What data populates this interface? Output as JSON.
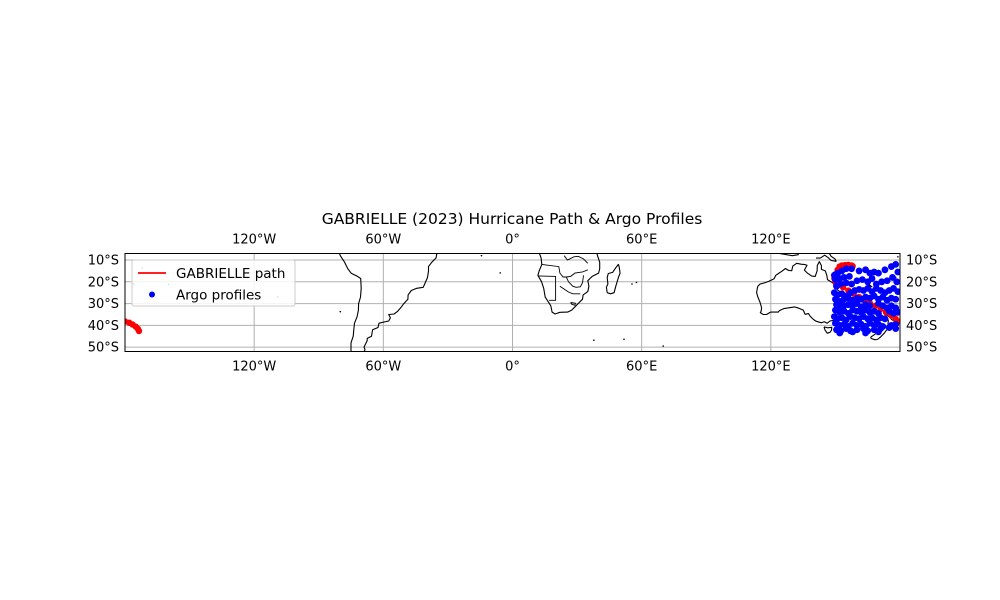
{
  "chart_data": {
    "type": "scatter",
    "title": "GABRIELLE (2023) Hurricane Path & Argo Profiles",
    "projection": "PlateCarree",
    "xlim": [
      -180,
      180
    ],
    "ylim": [
      -52,
      -7
    ],
    "grid": true,
    "legend_position": "upper-left",
    "lon_ticks": [
      {
        "value": -120,
        "label": "120°W"
      },
      {
        "value": -60,
        "label": "60°W"
      },
      {
        "value": 0,
        "label": "0°"
      },
      {
        "value": 60,
        "label": "60°E"
      },
      {
        "value": 120,
        "label": "120°E"
      }
    ],
    "lat_ticks": [
      {
        "value": -10,
        "label": "10°S"
      },
      {
        "value": -20,
        "label": "20°S"
      },
      {
        "value": -30,
        "label": "30°S"
      },
      {
        "value": -40,
        "label": "40°S"
      },
      {
        "value": -50,
        "label": "50°S"
      }
    ],
    "series": [
      {
        "name": "GABRIELLE path",
        "kind": "line",
        "color": "#ff0000",
        "segments": [
          [
            [
              152,
              -13
            ],
            [
              153,
              -12.5
            ],
            [
              154.5,
              -12.3
            ],
            [
              156,
              -12.2
            ],
            [
              157.5,
              -12.5
            ],
            [
              158,
              -12.8
            ]
          ],
          [
            [
              152,
              -13
            ],
            [
              151,
              -14.5
            ],
            [
              150,
              -16.5
            ],
            [
              149.5,
              -18.5
            ],
            [
              150,
              -20
            ],
            [
              151.5,
              -21.5
            ],
            [
              153.5,
              -22.5
            ],
            [
              156,
              -24
            ],
            [
              158.5,
              -25.5
            ],
            [
              161,
              -27
            ],
            [
              163.5,
              -28.5
            ],
            [
              166,
              -29.8
            ],
            [
              168.5,
              -31
            ],
            [
              171,
              -32.5
            ],
            [
              173.5,
              -34
            ],
            [
              176,
              -35.5
            ],
            [
              178,
              -37
            ],
            [
              180,
              -38.2
            ]
          ],
          [
            [
              -180,
              -38.2
            ],
            [
              -178,
              -38.8
            ],
            [
              -176.5,
              -39.6
            ],
            [
              -175,
              -40.6
            ],
            [
              -174,
              -41.6
            ],
            [
              -173.5,
              -42.6
            ]
          ]
        ]
      },
      {
        "name": "Argo profiles",
        "kind": "scatter",
        "color": "#0000ff",
        "points": [
          [
            149.5,
            -17
          ],
          [
            151,
            -16
          ],
          [
            153,
            -15
          ],
          [
            155,
            -14
          ],
          [
            157.5,
            -14
          ],
          [
            150,
            -19
          ],
          [
            152,
            -18.5
          ],
          [
            154,
            -18
          ],
          [
            156.5,
            -17.5
          ],
          [
            161,
            -15
          ],
          [
            164,
            -14.5
          ],
          [
            166,
            -16
          ],
          [
            168,
            -15.5
          ],
          [
            170,
            -16
          ],
          [
            173,
            -14.5
          ],
          [
            176,
            -13
          ],
          [
            178,
            -12
          ],
          [
            179,
            -15.5
          ],
          [
            150.5,
            -22
          ],
          [
            152.5,
            -21
          ],
          [
            155,
            -20.5
          ],
          [
            157.5,
            -21
          ],
          [
            160,
            -19.5
          ],
          [
            162.5,
            -19
          ],
          [
            165,
            -20
          ],
          [
            167,
            -18.5
          ],
          [
            169,
            -21
          ],
          [
            171.5,
            -20
          ],
          [
            174,
            -19.5
          ],
          [
            176.5,
            -18
          ],
          [
            178.5,
            -20
          ],
          [
            149.5,
            -25
          ],
          [
            151,
            -26
          ],
          [
            153,
            -25.5
          ],
          [
            155,
            -26.5
          ],
          [
            157,
            -25
          ],
          [
            159,
            -24
          ],
          [
            161,
            -23.5
          ],
          [
            163,
            -24
          ],
          [
            165,
            -23
          ],
          [
            167,
            -24.5
          ],
          [
            169,
            -23
          ],
          [
            171,
            -24
          ],
          [
            173,
            -25
          ],
          [
            175,
            -24
          ],
          [
            177,
            -23
          ],
          [
            179,
            -24.5
          ],
          [
            150,
            -28
          ],
          [
            152,
            -29
          ],
          [
            154,
            -28
          ],
          [
            156,
            -27.5
          ],
          [
            158,
            -28.5
          ],
          [
            160,
            -27.5
          ],
          [
            162,
            -28
          ],
          [
            164,
            -27
          ],
          [
            166,
            -27.5
          ],
          [
            168,
            -26.5
          ],
          [
            170,
            -28
          ],
          [
            172,
            -27
          ],
          [
            174,
            -28.5
          ],
          [
            176,
            -27.5
          ],
          [
            178,
            -28
          ],
          [
            150.5,
            -30.5
          ],
          [
            152,
            -31.5
          ],
          [
            154,
            -31
          ],
          [
            156,
            -30.5
          ],
          [
            158,
            -31
          ],
          [
            160,
            -30
          ],
          [
            162,
            -31.5
          ],
          [
            164,
            -30.5
          ],
          [
            166,
            -31
          ],
          [
            170,
            -30
          ],
          [
            172,
            -31
          ],
          [
            174,
            -32
          ],
          [
            176,
            -31
          ],
          [
            178,
            -32
          ],
          [
            150,
            -33
          ],
          [
            152,
            -34
          ],
          [
            154,
            -33.5
          ],
          [
            156,
            -34.5
          ],
          [
            158,
            -33
          ],
          [
            160,
            -33.5
          ],
          [
            162,
            -34
          ],
          [
            164,
            -33
          ],
          [
            166,
            -34
          ],
          [
            168,
            -33.5
          ],
          [
            170,
            -34.5
          ],
          [
            175,
            -33.5
          ],
          [
            177,
            -34.5
          ],
          [
            179,
            -34
          ],
          [
            149.5,
            -36
          ],
          [
            151,
            -37
          ],
          [
            153,
            -36.5
          ],
          [
            155,
            -37.5
          ],
          [
            157,
            -36
          ],
          [
            159,
            -36.5
          ],
          [
            161,
            -37
          ],
          [
            163,
            -36
          ],
          [
            165,
            -37
          ],
          [
            167,
            -36.5
          ],
          [
            169,
            -37.5
          ],
          [
            171,
            -36.5
          ],
          [
            173,
            -37
          ],
          [
            150,
            -39
          ],
          [
            152,
            -40
          ],
          [
            154,
            -39.5
          ],
          [
            156,
            -40.5
          ],
          [
            158,
            -39
          ],
          [
            160,
            -40
          ],
          [
            162,
            -39.5
          ],
          [
            164,
            -40.5
          ],
          [
            166,
            -39
          ],
          [
            168,
            -40
          ],
          [
            170,
            -39.5
          ],
          [
            172,
            -40.5
          ],
          [
            176,
            -40
          ],
          [
            178,
            -39.5
          ],
          [
            150.5,
            -42
          ],
          [
            152.5,
            -42.5
          ],
          [
            155,
            -41.5
          ],
          [
            157,
            -42.5
          ],
          [
            160,
            -42
          ],
          [
            163,
            -41.5
          ],
          [
            165,
            -42.5
          ],
          [
            168,
            -42
          ],
          [
            171,
            -41.5
          ],
          [
            175,
            -41
          ],
          [
            178,
            -41.5
          ],
          [
            152,
            -43.5
          ],
          [
            158,
            -43
          ],
          [
            164,
            -43.5
          ],
          [
            170,
            -43
          ]
        ]
      }
    ]
  }
}
